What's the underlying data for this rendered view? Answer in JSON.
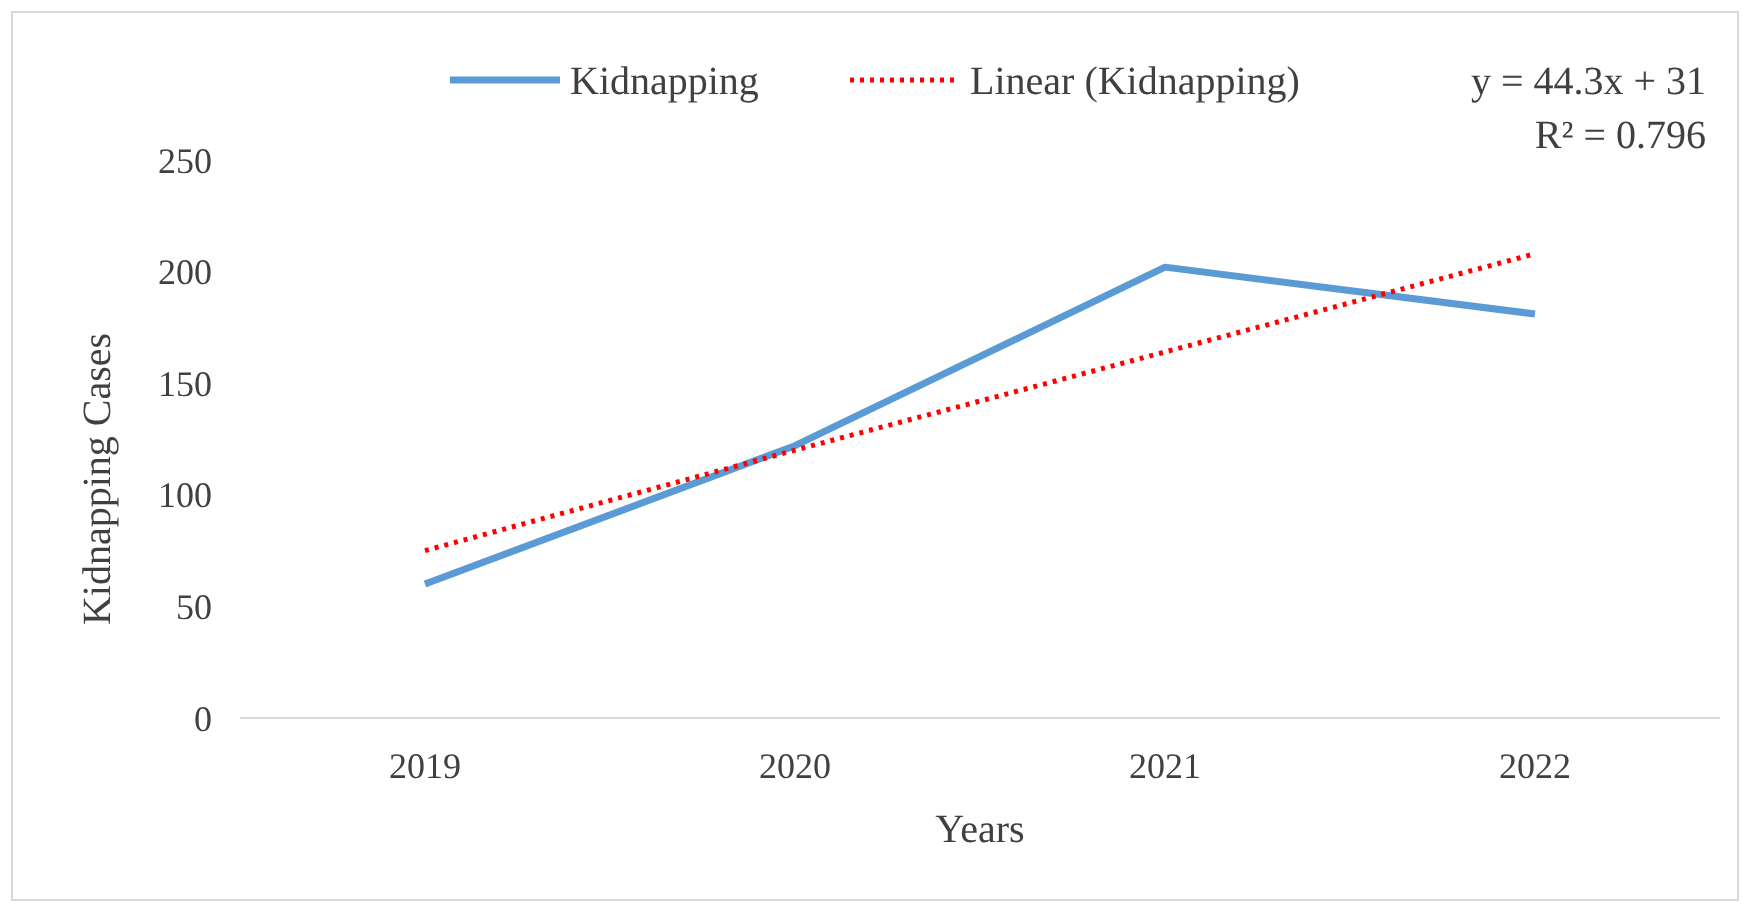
{
  "chart_data": {
    "type": "line",
    "xlabel": "Years",
    "ylabel": "Kidnapping Cases",
    "categories": [
      "2019",
      "2020",
      "2021",
      "2022"
    ],
    "series": [
      {
        "name": "Kidnapping",
        "color": "#5b9bd5",
        "values": [
          60,
          122,
          202,
          181
        ],
        "line_style": "solid"
      },
      {
        "name": "Linear (Kidnapping)",
        "color": "#ff0000",
        "values": [
          75,
          120,
          164,
          208
        ],
        "line_style": "dotted"
      }
    ],
    "ylim": [
      0,
      250
    ],
    "yticks": [
      0,
      50,
      100,
      150,
      200,
      250
    ],
    "legend": "top",
    "annotations": [
      "y = 44.3x + 31",
      "R² = 0.796"
    ]
  }
}
